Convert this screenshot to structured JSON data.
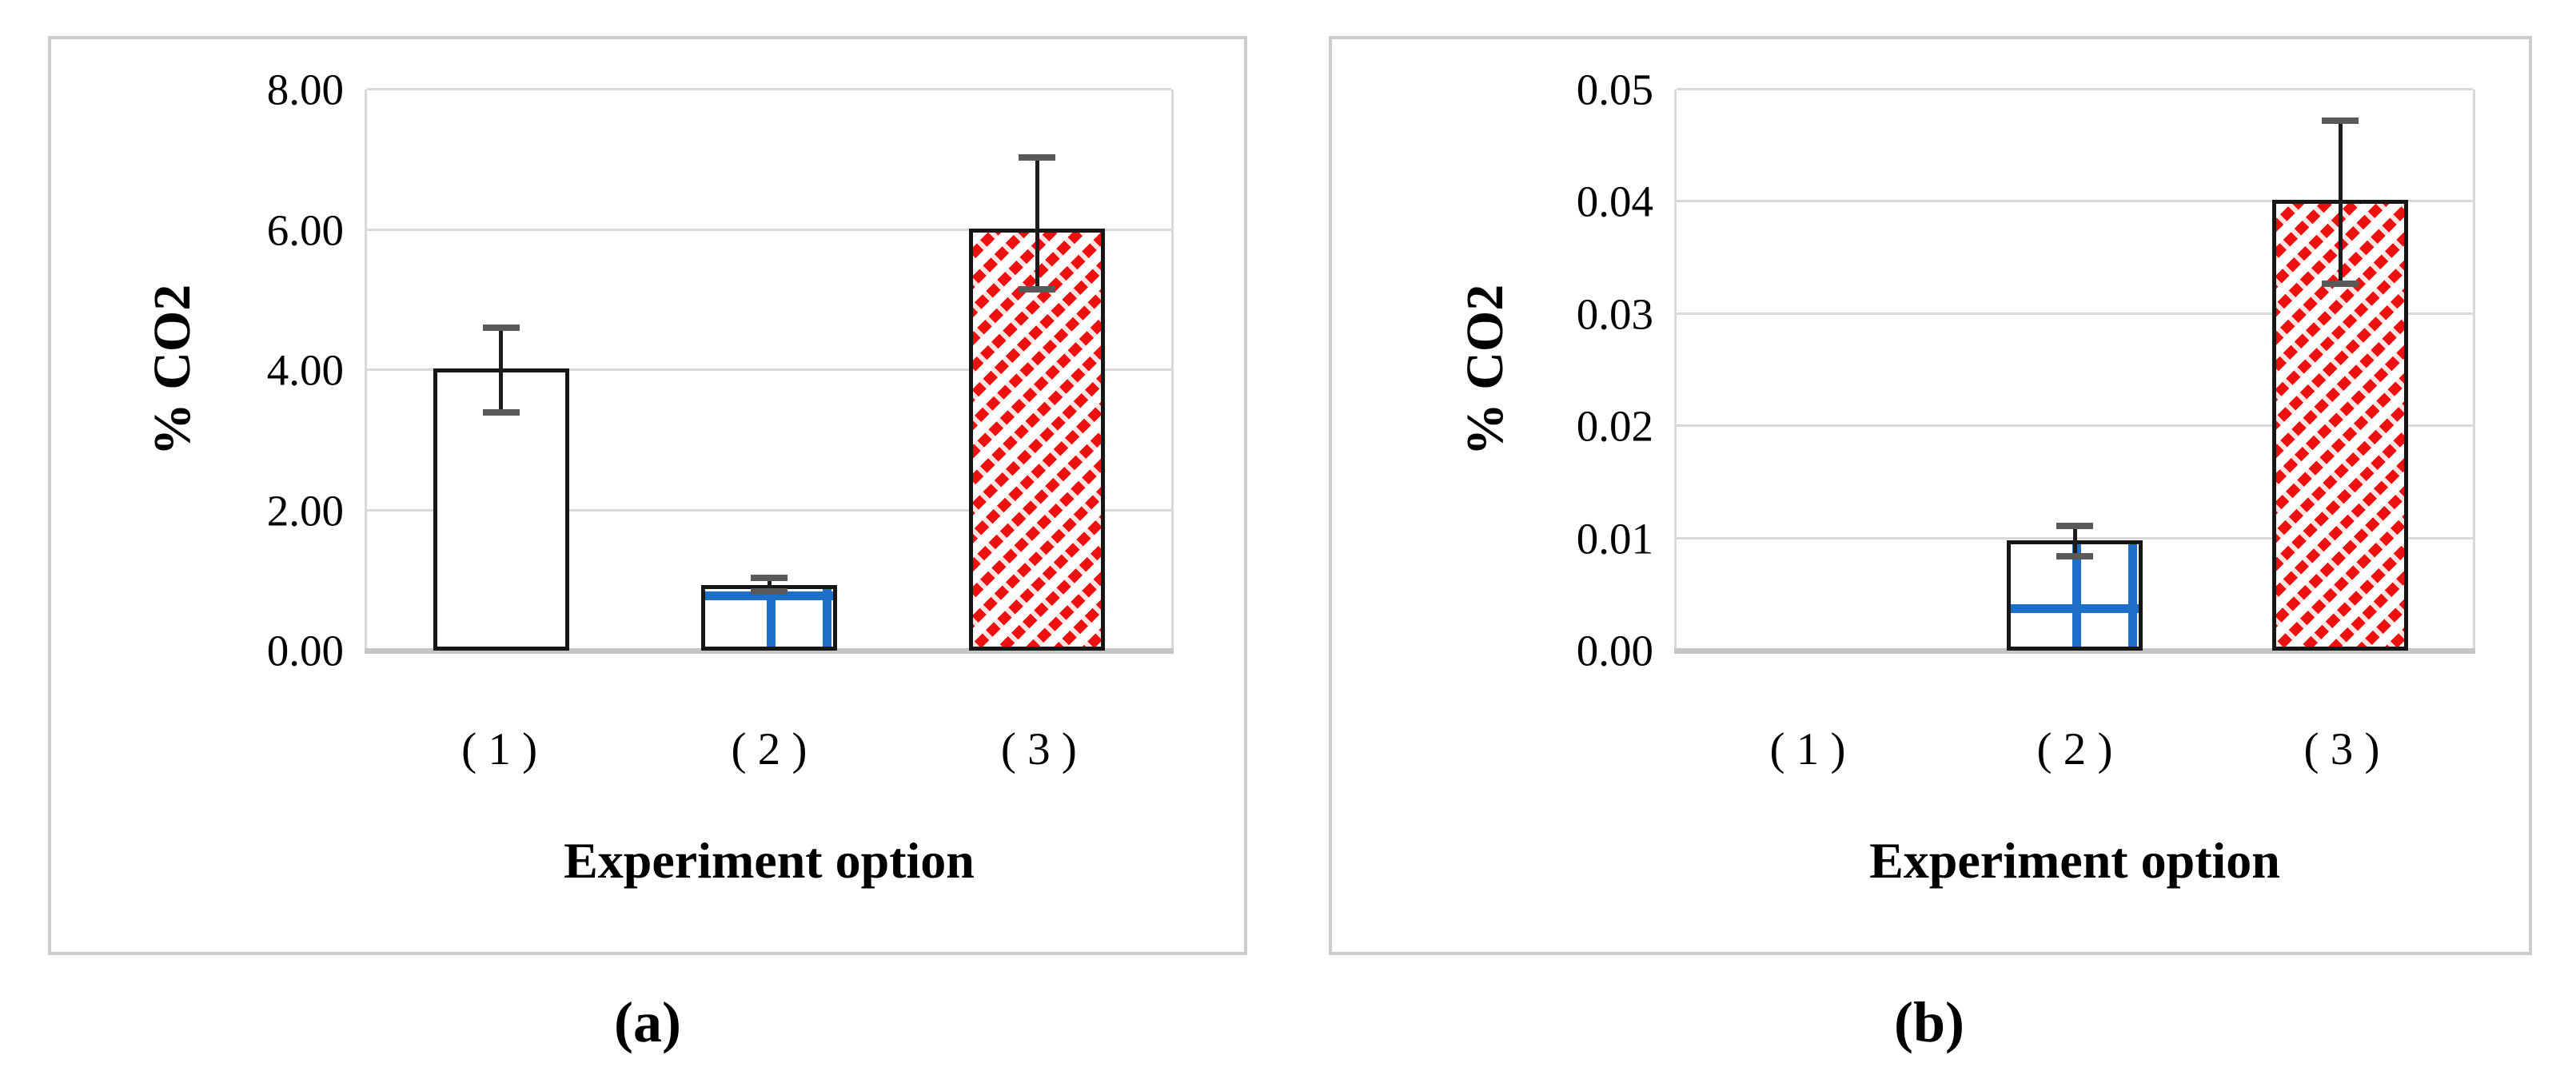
{
  "figure": {
    "captions": [
      "(a)",
      "(b)"
    ]
  },
  "colors": {
    "panel_border": "#cccccc",
    "gridline": "#d9d9d9",
    "axis_line": "#c6c6c6",
    "bar_border": "#161616",
    "error_line": "#1c1c1c",
    "error_cap": "#595959",
    "blue_grid": "#1e6fc8",
    "red_hatch": "#ee100e"
  },
  "chart_data": [
    {
      "type": "bar",
      "panel": "a",
      "title": "",
      "xlabel": "Experiment option",
      "ylabel": "% CO2",
      "categories": [
        "( 1 )",
        "( 2 )",
        "( 3 )"
      ],
      "values": [
        4.02,
        0.93,
        6.02
      ],
      "error_low": [
        3.35,
        0.8,
        5.1
      ],
      "error_high": [
        4.65,
        1.08,
        7.08
      ],
      "bar_styles": [
        "white-solid",
        "blue-grid",
        "red-hatch"
      ],
      "ylim": [
        0,
        8
      ],
      "yticks": [
        0,
        2,
        4,
        6,
        8
      ],
      "ytick_labels": [
        "0.00",
        "2.00",
        "4.00",
        "6.00",
        "8.00"
      ],
      "grid": true,
      "legend_position": "none"
    },
    {
      "type": "bar",
      "panel": "b",
      "title": "",
      "xlabel": "Experiment option",
      "ylabel": "% CO2",
      "categories": [
        "( 1 )",
        "( 2 )",
        "( 3 )"
      ],
      "values": [
        0,
        0.0098,
        0.0402
      ],
      "error_low": [
        null,
        0.0081,
        0.0324
      ],
      "error_high": [
        null,
        0.0114,
        0.0475
      ],
      "bar_styles": [
        "white-solid",
        "blue-grid",
        "red-hatch"
      ],
      "ylim": [
        0,
        0.05
      ],
      "yticks": [
        0,
        0.01,
        0.02,
        0.03,
        0.04,
        0.05
      ],
      "ytick_labels": [
        "0.00",
        "0.01",
        "0.02",
        "0.03",
        "0.04",
        "0.05"
      ],
      "grid": true,
      "legend_position": "none"
    }
  ]
}
